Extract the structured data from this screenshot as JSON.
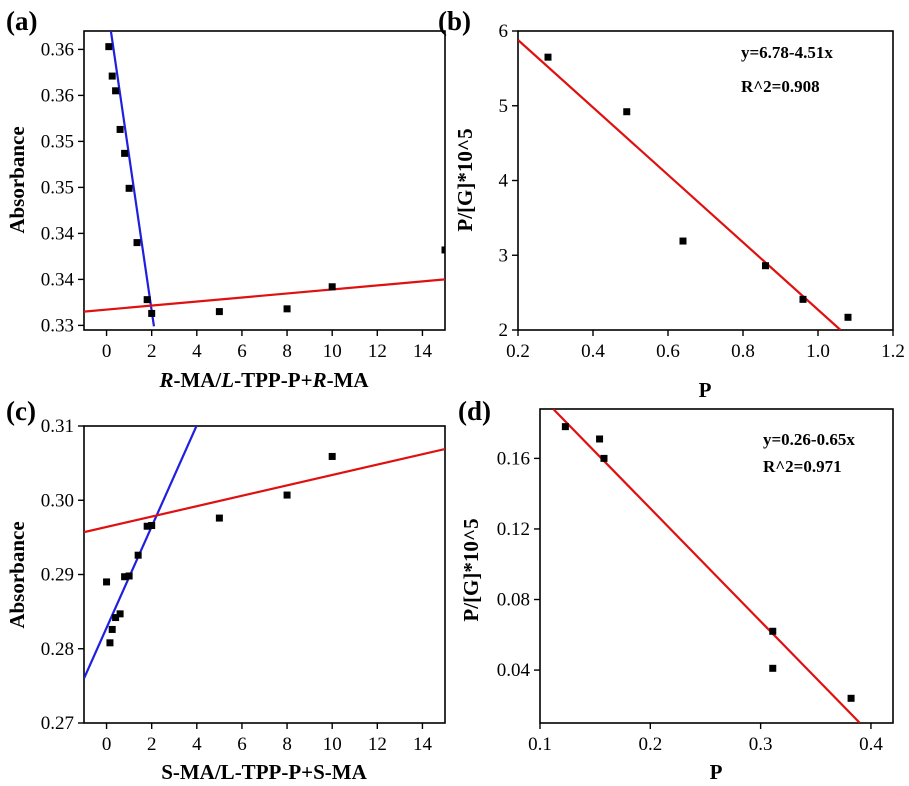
{
  "chart_data": [
    {
      "panel": "(a)",
      "type": "scatter",
      "xlabel_parts": [
        {
          "t": "R",
          "i": true
        },
        {
          "t": "-MA/",
          "i": false
        },
        {
          "t": "L",
          "i": true
        },
        {
          "t": "-TPP-P+",
          "i": false
        },
        {
          "t": "R",
          "i": true
        },
        {
          "t": "-MA",
          "i": false
        }
      ],
      "ylabel": "Absorbance",
      "xlim": [
        -1,
        15
      ],
      "ylim": [
        0.3305,
        0.363
      ],
      "xticks": [
        0,
        2,
        4,
        6,
        8,
        10,
        12,
        14
      ],
      "yticks": [
        0.331,
        0.336,
        0.341,
        0.346,
        0.351,
        0.356,
        0.361
      ],
      "ytick_labels": [
        "0.33",
        "0.34",
        "0.34",
        "0.35",
        "0.35",
        "0.36",
        "0.36"
      ],
      "points": [
        [
          0.1,
          0.3613
        ],
        [
          0.25,
          0.3581
        ],
        [
          0.4,
          0.3565
        ],
        [
          0.6,
          0.3523
        ],
        [
          0.8,
          0.3497
        ],
        [
          1.0,
          0.3459
        ],
        [
          1.35,
          0.34
        ],
        [
          1.8,
          0.3338
        ],
        [
          2.0,
          0.3323
        ],
        [
          5.0,
          0.3325
        ],
        [
          8.0,
          0.3328
        ],
        [
          10.0,
          0.3352
        ],
        [
          15.0,
          0.3392
        ]
      ],
      "fit_lines": [
        {
          "color": "#1f1fe0",
          "x": [
            -0.7,
            2.1
          ],
          "y": [
            0.378,
            0.3309
          ]
        },
        {
          "color": "#e01010",
          "x": [
            -1,
            15
          ],
          "y": [
            0.3325,
            0.336
          ]
        }
      ]
    },
    {
      "panel": "(b)",
      "type": "scatter",
      "xlabel": "P",
      "ylabel": "P/[G]*10^5",
      "xlim": [
        0.2,
        1.2
      ],
      "ylim": [
        2,
        6
      ],
      "xticks": [
        0.2,
        0.4,
        0.6,
        0.8,
        1.0,
        1.2
      ],
      "xtick_labels": [
        "0.2",
        "0.4",
        "0.6",
        "0.8",
        "1.0",
        "1.2"
      ],
      "yticks": [
        2,
        3,
        4,
        5,
        6
      ],
      "ytick_labels": [
        "2",
        "3",
        "4",
        "5",
        "6"
      ],
      "points": [
        [
          0.28,
          5.65
        ],
        [
          0.49,
          4.92
        ],
        [
          0.64,
          3.19
        ],
        [
          0.86,
          2.86
        ],
        [
          0.96,
          2.41
        ],
        [
          1.08,
          2.17
        ]
      ],
      "fit_lines": [
        {
          "color": "#e01010",
          "x": [
            0.2,
            1.06
          ],
          "y": [
            5.88,
            2.0
          ]
        }
      ],
      "equation": "y=6.78-4.51x",
      "r2": "R^2=0.908"
    },
    {
      "panel": "(c)",
      "type": "scatter",
      "xlabel": "S-MA/L-TPP-P+S-MA",
      "ylabel": "Absorbance",
      "xlim": [
        -1,
        15
      ],
      "ylim": [
        0.27,
        0.31
      ],
      "xticks": [
        0,
        2,
        4,
        6,
        8,
        10,
        12,
        14
      ],
      "yticks": [
        0.27,
        0.28,
        0.29,
        0.3,
        0.31
      ],
      "ytick_labels": [
        "0.27",
        "0.28",
        "0.29",
        "0.30",
        "0.31"
      ],
      "points": [
        [
          0.0,
          0.289
        ],
        [
          0.15,
          0.2808
        ],
        [
          0.25,
          0.2826
        ],
        [
          0.4,
          0.2842
        ],
        [
          0.6,
          0.2847
        ],
        [
          0.8,
          0.2897
        ],
        [
          1.0,
          0.2898
        ],
        [
          1.4,
          0.2926
        ],
        [
          1.8,
          0.2965
        ],
        [
          2.0,
          0.2966
        ],
        [
          5.0,
          0.2976
        ],
        [
          8.0,
          0.3007
        ],
        [
          10.0,
          0.3059
        ]
      ],
      "fit_lines": [
        {
          "color": "#1f1fe0",
          "x": [
            -1,
            4.0
          ],
          "y": [
            0.276,
            0.3101
          ]
        },
        {
          "color": "#e01010",
          "x": [
            -1,
            15
          ],
          "y": [
            0.2957,
            0.3069
          ]
        }
      ]
    },
    {
      "panel": "(d)",
      "type": "scatter",
      "xlabel": "P",
      "ylabel": "P/[G]*10^5",
      "xlim": [
        0.1,
        0.42
      ],
      "ylim": [
        0.01,
        0.188
      ],
      "xticks": [
        0.1,
        0.2,
        0.3,
        0.4
      ],
      "xtick_labels": [
        "0.1",
        "0.2",
        "0.3",
        "0.4"
      ],
      "yticks": [
        0.04,
        0.08,
        0.12,
        0.16
      ],
      "ytick_labels": [
        "0.04",
        "0.08",
        "0.12",
        "0.16"
      ],
      "points": [
        [
          0.123,
          0.178
        ],
        [
          0.154,
          0.171
        ],
        [
          0.158,
          0.16
        ],
        [
          0.311,
          0.062
        ],
        [
          0.311,
          0.041
        ],
        [
          0.382,
          0.024
        ]
      ],
      "fit_lines": [
        {
          "color": "#e01010",
          "x": [
            0.112,
            0.39
          ],
          "y": [
            0.188,
            0.01
          ]
        }
      ],
      "equation": "y=0.26-0.65x",
      "r2": "R^2=0.971"
    }
  ]
}
